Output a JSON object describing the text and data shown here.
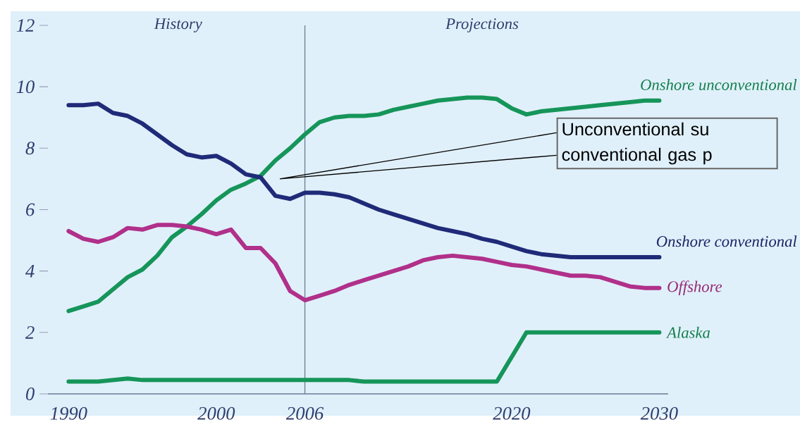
{
  "chart_data": {
    "type": "line",
    "x": [
      1990,
      1991,
      1992,
      1993,
      1994,
      1995,
      1996,
      1997,
      1998,
      1999,
      2000,
      2001,
      2002,
      2003,
      2004,
      2005,
      2006,
      2007,
      2008,
      2009,
      2010,
      2011,
      2012,
      2013,
      2014,
      2015,
      2016,
      2017,
      2018,
      2019,
      2020,
      2021,
      2022,
      2023,
      2024,
      2025,
      2026,
      2027,
      2028,
      2029,
      2030
    ],
    "series": [
      {
        "name": "Onshore unconventional",
        "color": "#16955a",
        "values": [
          2.7,
          2.85,
          3.0,
          3.4,
          3.8,
          4.05,
          4.5,
          5.1,
          5.45,
          5.85,
          6.3,
          6.65,
          6.85,
          7.1,
          7.6,
          8.0,
          8.45,
          8.85,
          9.0,
          9.05,
          9.05,
          9.1,
          9.25,
          9.35,
          9.45,
          9.55,
          9.6,
          9.65,
          9.65,
          9.6,
          9.3,
          9.1,
          9.2,
          9.25,
          9.3,
          9.35,
          9.4,
          9.45,
          9.5,
          9.55,
          9.55
        ]
      },
      {
        "name": "Onshore conventional",
        "color": "#1f2a78",
        "values": [
          9.4,
          9.4,
          9.45,
          9.15,
          9.05,
          8.8,
          8.45,
          8.1,
          7.8,
          7.7,
          7.75,
          7.5,
          7.15,
          7.05,
          6.45,
          6.35,
          6.55,
          6.55,
          6.5,
          6.4,
          6.2,
          6.0,
          5.85,
          5.7,
          5.55,
          5.4,
          5.3,
          5.2,
          5.05,
          4.95,
          4.8,
          4.65,
          4.55,
          4.5,
          4.45,
          4.45,
          4.45,
          4.45,
          4.45,
          4.45,
          4.45
        ]
      },
      {
        "name": "Offshore",
        "color": "#b0308a",
        "values": [
          5.3,
          5.05,
          4.95,
          5.1,
          5.4,
          5.35,
          5.5,
          5.5,
          5.45,
          5.35,
          5.2,
          5.35,
          4.75,
          4.75,
          4.25,
          3.35,
          3.05,
          3.2,
          3.35,
          3.55,
          3.7,
          3.85,
          4.0,
          4.15,
          4.35,
          4.45,
          4.5,
          4.45,
          4.4,
          4.3,
          4.2,
          4.15,
          4.05,
          3.95,
          3.85,
          3.85,
          3.8,
          3.65,
          3.5,
          3.45,
          3.45
        ]
      },
      {
        "name": "Alaska",
        "color": "#16955a",
        "values": [
          0.4,
          0.4,
          0.4,
          0.45,
          0.5,
          0.45,
          0.45,
          0.45,
          0.45,
          0.45,
          0.45,
          0.45,
          0.45,
          0.45,
          0.45,
          0.45,
          0.45,
          0.45,
          0.45,
          0.45,
          0.4,
          0.4,
          0.4,
          0.4,
          0.4,
          0.4,
          0.4,
          0.4,
          0.4,
          0.4,
          1.2,
          2.0,
          2.0,
          2.0,
          2.0,
          2.0,
          2.0,
          2.0,
          2.0,
          2.0,
          2.0
        ]
      }
    ],
    "xlim": [
      1988.6,
      2030.6
    ],
    "ylim": [
      0,
      12
    ],
    "xticks": [
      1990,
      2000,
      2006,
      2020,
      2030
    ],
    "yticks": [
      0,
      2,
      4,
      6,
      8,
      10,
      12
    ],
    "ref_lines": [
      {
        "axis": "x",
        "value": 2006,
        "color": "#6f7f95"
      }
    ],
    "annotations": [
      "History",
      "Projections",
      "Unconventional su conventional gas p"
    ],
    "grid": false
  }
}
